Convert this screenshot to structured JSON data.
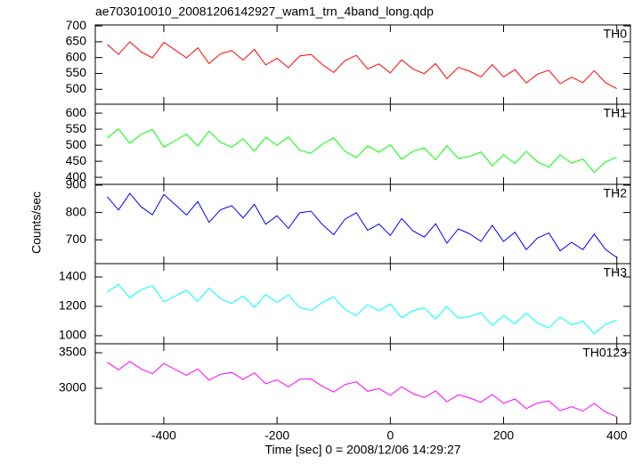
{
  "chart_data": [
    {
      "type": "line",
      "title": "ae703010010_20081206142927_wam1_trn_4band_long.qdp",
      "x": [
        -500,
        -480,
        -460,
        -440,
        -420,
        -400,
        -380,
        -360,
        -340,
        -320,
        -300,
        -280,
        -260,
        -240,
        -220,
        -200,
        -180,
        -160,
        -140,
        -120,
        -100,
        -80,
        -60,
        -40,
        -20,
        0,
        20,
        40,
        60,
        80,
        100,
        120,
        140,
        160,
        180,
        200,
        220,
        240,
        260,
        280,
        300,
        320,
        340,
        360,
        380,
        400
      ],
      "xlim": [
        -521,
        424
      ],
      "ylim": [
        453,
        703
      ],
      "yticks": [
        500,
        550,
        600,
        650,
        700
      ],
      "series": [
        {
          "name": "TH0",
          "color": "#ff0000",
          "values": [
            642,
            610,
            650,
            618,
            599,
            648,
            624,
            599,
            631,
            581,
            612,
            622,
            592,
            626,
            577,
            598,
            568,
            605,
            610,
            578,
            553,
            591,
            607,
            564,
            580,
            552,
            593,
            564,
            549,
            581,
            534,
            569,
            557,
            539,
            578,
            539,
            562,
            520,
            548,
            560,
            518,
            538,
            521,
            559,
            521,
            502
          ]
        }
      ]
    },
    {
      "type": "line",
      "x": [
        -500,
        -480,
        -460,
        -440,
        -420,
        -400,
        -380,
        -360,
        -340,
        -320,
        -300,
        -280,
        -260,
        -240,
        -220,
        -200,
        -180,
        -160,
        -140,
        -120,
        -100,
        -80,
        -60,
        -40,
        -20,
        0,
        20,
        40,
        60,
        80,
        100,
        120,
        140,
        160,
        180,
        200,
        220,
        240,
        260,
        280,
        300,
        320,
        340,
        360,
        380,
        400
      ],
      "xlim": [
        -521,
        424
      ],
      "ylim": [
        378,
        628
      ],
      "yticks": [
        400,
        450,
        500,
        550,
        600
      ],
      "series": [
        {
          "name": "TH1",
          "color": "#00ff00",
          "values": [
            523,
            551,
            506,
            534,
            549,
            494,
            514,
            535,
            498,
            544,
            509,
            494,
            520,
            482,
            525,
            500,
            526,
            484,
            475,
            503,
            523,
            481,
            461,
            498,
            478,
            502,
            456,
            481,
            492,
            455,
            498,
            459,
            465,
            479,
            436,
            470,
            443,
            481,
            448,
            432,
            470,
            444,
            457,
            415,
            448,
            463
          ]
        }
      ]
    },
    {
      "type": "line",
      "ylabel": "Counts/sec",
      "x": [
        -500,
        -480,
        -460,
        -440,
        -420,
        -400,
        -380,
        -360,
        -340,
        -320,
        -300,
        -280,
        -260,
        -240,
        -220,
        -200,
        -180,
        -160,
        -140,
        -120,
        -100,
        -80,
        -60,
        -40,
        -20,
        0,
        20,
        40,
        60,
        80,
        100,
        120,
        140,
        160,
        180,
        200,
        220,
        240,
        260,
        280,
        300,
        320,
        340,
        360,
        380,
        400
      ],
      "xlim": [
        -521,
        424
      ],
      "ylim": [
        613,
        903
      ],
      "yticks": [
        700,
        800,
        900
      ],
      "series": [
        {
          "name": "TH2",
          "color": "#0000ff",
          "values": [
            858,
            809,
            870,
            821,
            792,
            866,
            829,
            791,
            840,
            764,
            810,
            825,
            780,
            830,
            757,
            788,
            742,
            799,
            805,
            756,
            719,
            776,
            799,
            735,
            758,
            716,
            778,
            733,
            710,
            759,
            688,
            740,
            722,
            694,
            753,
            694,
            728,
            664,
            707,
            725,
            660,
            691,
            664,
            721,
            665,
            635
          ]
        }
      ]
    },
    {
      "type": "line",
      "x": [
        -500,
        -480,
        -460,
        -440,
        -420,
        -400,
        -380,
        -360,
        -340,
        -320,
        -300,
        -280,
        -260,
        -240,
        -220,
        -200,
        -180,
        -160,
        -140,
        -120,
        -100,
        -80,
        -60,
        -40,
        -20,
        0,
        20,
        40,
        60,
        80,
        100,
        120,
        140,
        160,
        180,
        200,
        220,
        240,
        260,
        280,
        300,
        320,
        340,
        360,
        380,
        400
      ],
      "xlim": [
        -521,
        424
      ],
      "ylim": [
        945,
        1491
      ],
      "yticks": [
        1000,
        1200,
        1400
      ],
      "series": [
        {
          "name": "TH3",
          "color": "#00ffff",
          "values": [
            1296,
            1350,
            1258,
            1313,
            1341,
            1231,
            1269,
            1310,
            1234,
            1324,
            1252,
            1220,
            1271,
            1193,
            1279,
            1227,
            1278,
            1192,
            1172,
            1226,
            1264,
            1179,
            1137,
            1211,
            1169,
            1216,
            1122,
            1170,
            1190,
            1114,
            1199,
            1119,
            1131,
            1157,
            1070,
            1136,
            1080,
            1154,
            1086,
            1053,
            1127,
            1075,
            1099,
            1013,
            1078,
            1106
          ]
        }
      ]
    },
    {
      "type": "line",
      "xlabel": "Time [sec] 0 = 2008/12/06 14:29:27",
      "x": [
        -500,
        -480,
        -460,
        -440,
        -420,
        -400,
        -380,
        -360,
        -340,
        -320,
        -300,
        -280,
        -260,
        -240,
        -220,
        -200,
        -180,
        -160,
        -140,
        -120,
        -100,
        -80,
        -60,
        -40,
        -20,
        0,
        20,
        40,
        60,
        80,
        100,
        120,
        140,
        160,
        180,
        200,
        220,
        240,
        260,
        280,
        300,
        320,
        340,
        360,
        380,
        400
      ],
      "xlim": [
        -521,
        424
      ],
      "xticks": [
        -400,
        -200,
        0,
        200,
        400
      ],
      "ylim": [
        2500,
        3625
      ],
      "yticks": [
        3000,
        3500
      ],
      "series": [
        {
          "name": "TH0123",
          "color": "#ff00ff",
          "values": [
            3366,
            3261,
            3376,
            3271,
            3205,
            3347,
            3266,
            3182,
            3273,
            3114,
            3198,
            3223,
            3124,
            3217,
            3065,
            3119,
            3020,
            3126,
            3132,
            3027,
            2947,
            3052,
            3091,
            2957,
            2996,
            2903,
            3021,
            2925,
            2871,
            2962,
            2812,
            2908,
            2867,
            2804,
            2912,
            2790,
            2850,
            2715,
            2794,
            2821,
            2686,
            2741,
            2681,
            2786,
            2667,
            2601
          ]
        }
      ]
    }
  ]
}
